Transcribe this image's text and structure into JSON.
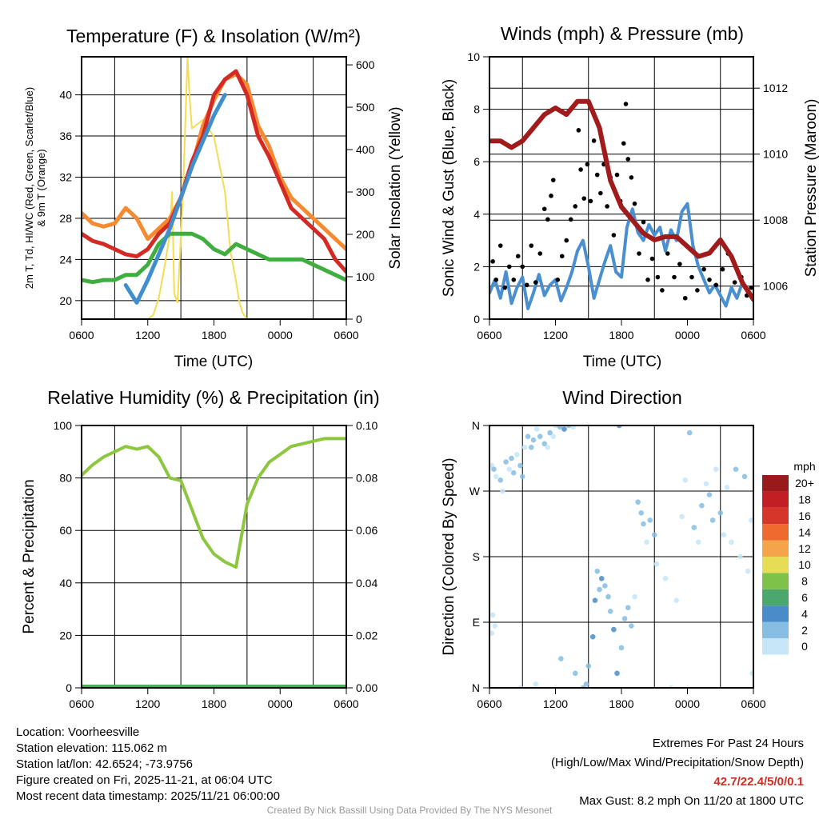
{
  "colors": {
    "temp": "#d42a24",
    "dew": "#3fae3f",
    "wc": "#3f8fcf",
    "t9m": "#f58a30",
    "solar": "#f5dc50",
    "pressure": "#a01c1c",
    "sonic": "#4a90d0",
    "gust": "#000000",
    "rh": "#8dc63f",
    "precip": "#4caf50"
  },
  "chart_data": [
    {
      "id": "temp",
      "type": "line",
      "title": "Temperature (F) & Insolation (W/m²)",
      "xlabel": "Time (UTC)",
      "ylabel": "2m T, Td, HI/WC (Red, Green, Scarlet/Blue)",
      "ylabel2": "& 9m T (Orange)",
      "ylabel_right": "Solar Insolation (Yellow)",
      "xticks": [
        "0600",
        "1200",
        "1800",
        "0000",
        "0600"
      ],
      "ylim": [
        18.2,
        43.7
      ],
      "yticks": [
        20,
        24,
        28,
        32,
        36,
        40
      ],
      "yticklabels": [
        "20",
        "24",
        "28",
        "32",
        "36",
        "40"
      ],
      "ylim_right": [
        0,
        619
      ],
      "yticks_right": [
        0,
        100,
        200,
        300,
        400,
        500,
        600
      ],
      "x_hours": [
        0,
        1,
        2,
        3,
        4,
        5,
        6,
        7,
        8,
        9,
        10,
        11,
        12,
        13,
        14,
        15,
        16,
        17,
        18,
        19,
        20,
        21,
        22,
        23,
        24
      ],
      "series": [
        {
          "name": "9m T",
          "color_key": "t9m",
          "values": [
            28.5,
            27.5,
            27.2,
            27.5,
            29,
            28,
            26,
            27,
            28,
            30,
            33,
            37,
            39.5,
            41.5,
            42,
            41,
            37,
            35,
            32,
            30,
            29,
            28,
            27,
            26,
            25
          ]
        },
        {
          "name": "2m T",
          "color_key": "temp",
          "values": [
            26.5,
            25.8,
            25.5,
            25,
            24.5,
            24.3,
            25,
            26.5,
            27.5,
            30,
            33.5,
            36,
            40,
            41.5,
            42.3,
            40,
            36,
            34,
            31.5,
            29,
            28,
            27,
            26,
            24,
            22.8
          ]
        },
        {
          "name": "Td",
          "color_key": "dew",
          "values": [
            22,
            21.8,
            22,
            22,
            22.5,
            22.5,
            23.5,
            25.5,
            26.5,
            26.5,
            26.5,
            26,
            25,
            24.5,
            25.5,
            25,
            24.5,
            24,
            24,
            24,
            24,
            23.5,
            23,
            22.5,
            22
          ]
        },
        {
          "name": "HI/WC",
          "color_key": "wc",
          "values": [
            25.5,
            null,
            null,
            null,
            21.5,
            19.8,
            22,
            24.5,
            27,
            30,
            33,
            35.5,
            38,
            40,
            null,
            null,
            null,
            null,
            null,
            null,
            null,
            null,
            null,
            null,
            22.5
          ]
        }
      ],
      "solar": {
        "x": [
          0,
          6,
          6.5,
          7,
          7.5,
          8,
          8.2,
          8.4,
          8.7,
          9.2,
          9.6,
          9.8,
          10,
          10.5,
          11,
          12,
          13,
          13.5,
          14,
          14.3,
          14.6,
          15,
          24
        ],
        "values": [
          0,
          0,
          10,
          50,
          120,
          200,
          300,
          60,
          40,
          300,
          620,
          520,
          450,
          460,
          470,
          430,
          300,
          160,
          90,
          40,
          15,
          0,
          0
        ]
      }
    },
    {
      "id": "wind",
      "type": "line",
      "title": "Winds (mph) & Pressure (mb)",
      "xlabel": "Time (UTC)",
      "ylabel": "Sonic Wind & Gust (Blue, Black)",
      "ylabel_right": "Station Pressure (Maroon)",
      "xticks": [
        "0600",
        "1200",
        "1800",
        "0000",
        "0600"
      ],
      "ylim": [
        0,
        10
      ],
      "yticks": [
        0,
        2,
        4,
        6,
        8,
        10
      ],
      "yticklabels": [
        "0",
        "2",
        "4",
        "6",
        "8",
        "10"
      ],
      "ylim_right": [
        1005,
        1012.95
      ],
      "yticks_right": [
        1006,
        1008,
        1010,
        1012
      ],
      "sonic": [
        1.0,
        1.5,
        0.8,
        1.8,
        0.6,
        1.2,
        1.6,
        0.4,
        1.0,
        1.7,
        0.9,
        1.3,
        1.5,
        0.7,
        1.2,
        1.8,
        2.6,
        3.0,
        2.0,
        0.8,
        1.5,
        2.2,
        2.8,
        1.8,
        1.6,
        3.5,
        4.2,
        3.3,
        3.0,
        3.6,
        3.2,
        3.5,
        2.6,
        3.4,
        3.0,
        4.1,
        4.4,
        2.8,
        2.0,
        1.5,
        1.0,
        1.3,
        0.9,
        0.5,
        1.2,
        0.8,
        1.4,
        1.0,
        0.7
      ],
      "gusts": [
        [
          0.3,
          2.2
        ],
        [
          0.6,
          1.5
        ],
        [
          1,
          2.8
        ],
        [
          1.4,
          1.2
        ],
        [
          1.8,
          2
        ],
        [
          2.2,
          1.5
        ],
        [
          2.6,
          2.4
        ],
        [
          3,
          2
        ],
        [
          3.4,
          1.3
        ],
        [
          3.8,
          2.8
        ],
        [
          4.2,
          1.4
        ],
        [
          4.6,
          2.5
        ],
        [
          5,
          4.2
        ],
        [
          5.3,
          3.8
        ],
        [
          5.6,
          4.7
        ],
        [
          5.8,
          5.3
        ],
        [
          6.2,
          1.5
        ],
        [
          6.6,
          2.4
        ],
        [
          7,
          3
        ],
        [
          7.4,
          3.8
        ],
        [
          7.8,
          4.3
        ],
        [
          8.1,
          7.2
        ],
        [
          8.3,
          5.7
        ],
        [
          8.6,
          4.6
        ],
        [
          8.9,
          5.9
        ],
        [
          9.2,
          4.5
        ],
        [
          9.5,
          6.8
        ],
        [
          9.8,
          5.5
        ],
        [
          10.1,
          4.8
        ],
        [
          10.4,
          5.9
        ],
        [
          10.7,
          4.3
        ],
        [
          11,
          5.4
        ],
        [
          11.3,
          3.2
        ],
        [
          11.6,
          5.5
        ],
        [
          11.9,
          4.5
        ],
        [
          12.2,
          6.7
        ],
        [
          12.4,
          8.2
        ],
        [
          12.6,
          6.1
        ],
        [
          12.9,
          5.4
        ],
        [
          13.2,
          4.4
        ],
        [
          13.6,
          2.5
        ],
        [
          14,
          3.7
        ],
        [
          14.4,
          1.5
        ],
        [
          14.8,
          2.3
        ],
        [
          15.3,
          1.6
        ],
        [
          15.7,
          1.1
        ],
        [
          16.2,
          2.5
        ],
        [
          16.8,
          1.6
        ],
        [
          17.3,
          2.1
        ],
        [
          17.8,
          0.8
        ],
        [
          18.4,
          1.6
        ],
        [
          18.9,
          1.1
        ],
        [
          19.5,
          1.9
        ],
        [
          20,
          1.5
        ],
        [
          20.6,
          1.3
        ],
        [
          21.2,
          1.9
        ],
        [
          21.7,
          2.5
        ],
        [
          22.3,
          1.4
        ],
        [
          22.9,
          1.6
        ],
        [
          23.4,
          0.9
        ],
        [
          23.8,
          1.2
        ]
      ],
      "pressure": [
        1010.4,
        1010.4,
        1010.2,
        1010.4,
        1010.8,
        1011.2,
        1011.4,
        1011.2,
        1011.6,
        1011.6,
        1010.8,
        1009.2,
        1008.4,
        1008.0,
        1007.6,
        1007.4,
        1007.5,
        1007.5,
        1007.2,
        1006.9,
        1007.0,
        1007.4,
        1006.9,
        1006.1,
        1005.6
      ]
    },
    {
      "id": "rh",
      "type": "line",
      "title": "Relative Humidity (%) & Precipitation (in)",
      "ylabel": "Percent & Precipitation",
      "xticks": [
        "0600",
        "1200",
        "1800",
        "0000",
        "0600"
      ],
      "ylim": [
        0,
        100
      ],
      "yticks": [
        0,
        20,
        40,
        60,
        80,
        100
      ],
      "yticklabels": [
        "0",
        "20",
        "40",
        "60",
        "80",
        "100"
      ],
      "ylim_right": [
        0,
        0.1
      ],
      "yticks_right": [
        0,
        0.02,
        0.04,
        0.06,
        0.08,
        0.1
      ],
      "yticklabels_right": [
        "0.00",
        "0.02",
        "0.04",
        "0.06",
        "0.08",
        "0.10"
      ],
      "rh": [
        81,
        85,
        88,
        90,
        92,
        91,
        92,
        88,
        80,
        79,
        68,
        57,
        51,
        48,
        46,
        70,
        80,
        86,
        89,
        92,
        93,
        94,
        95,
        95,
        95
      ],
      "precip": [
        0,
        0
      ]
    },
    {
      "id": "dir",
      "type": "scatter",
      "title": "Wind Direction",
      "ylabel": "Direction (Colored By Speed)",
      "xticks": [
        "0600",
        "1200",
        "1800",
        "0000",
        "0600"
      ],
      "ylim": [
        0,
        360
      ],
      "yticks": [
        0,
        90,
        180,
        270,
        360
      ],
      "yticklabels": [
        "N",
        "E",
        "S",
        "W",
        "N"
      ],
      "colorbar": {
        "title": "mph",
        "labels": [
          "0",
          "2",
          "4",
          "6",
          "8",
          "10",
          "12",
          "14",
          "16",
          "18",
          "20+"
        ],
        "colors": [
          "#c6e6f7",
          "#85bde3",
          "#4a8cc9",
          "#4aa86c",
          "#7fc24a",
          "#e6dc55",
          "#f5a44a",
          "#ee6a2e",
          "#d6352a",
          "#c11f24",
          "#9a1a1c"
        ]
      },
      "points": [
        [
          0.2,
          305,
          1
        ],
        [
          0.4,
          300,
          2
        ],
        [
          0.6,
          290,
          0.5
        ],
        [
          1.0,
          285,
          2
        ],
        [
          0.3,
          100,
          1
        ],
        [
          0.5,
          85,
          0.5
        ],
        [
          0.2,
          75,
          0
        ],
        [
          1.2,
          270,
          1
        ],
        [
          1.5,
          310,
          2
        ],
        [
          1.8,
          300,
          1
        ],
        [
          2.0,
          315,
          3
        ],
        [
          2.2,
          295,
          2
        ],
        [
          2.5,
          320,
          1
        ],
        [
          2.8,
          305,
          3
        ],
        [
          3,
          290,
          2
        ],
        [
          3.2,
          330,
          1
        ],
        [
          3.5,
          345,
          3
        ],
        [
          3.8,
          330,
          2
        ],
        [
          4,
          340,
          3
        ],
        [
          4.3,
          355,
          1
        ],
        [
          4.6,
          345,
          2
        ],
        [
          5,
          335,
          3
        ],
        [
          5.3,
          330,
          1
        ],
        [
          5.5,
          350,
          2
        ],
        [
          5.8,
          345,
          1
        ],
        [
          6,
          360,
          0
        ],
        [
          6.4,
          358,
          3
        ],
        [
          6.8,
          355,
          4
        ],
        [
          7.2,
          360,
          3
        ],
        [
          7.6,
          358,
          1
        ],
        [
          4.2,
          5,
          1
        ],
        [
          2.8,
          0,
          0
        ],
        [
          6.5,
          40,
          2
        ],
        [
          7.8,
          20,
          2
        ],
        [
          8.5,
          0,
          3
        ],
        [
          8.8,
          5,
          2
        ],
        [
          9,
          30,
          3
        ],
        [
          9.4,
          70,
          4
        ],
        [
          9.6,
          120,
          4
        ],
        [
          9.8,
          160,
          3
        ],
        [
          10,
          135,
          2
        ],
        [
          10.2,
          150,
          4
        ],
        [
          10.5,
          140,
          3
        ],
        [
          10.8,
          125,
          3
        ],
        [
          11,
          105,
          3
        ],
        [
          11.3,
          80,
          4
        ],
        [
          11.6,
          20,
          4
        ],
        [
          11.8,
          360,
          5
        ],
        [
          12,
          55,
          3
        ],
        [
          12.3,
          95,
          2
        ],
        [
          12.6,
          110,
          3
        ],
        [
          12.9,
          85,
          2
        ],
        [
          13.2,
          125,
          1
        ],
        [
          13.5,
          255,
          2
        ],
        [
          13.8,
          240,
          3
        ],
        [
          14,
          225,
          2
        ],
        [
          14.3,
          200,
          1
        ],
        [
          14.6,
          230,
          3
        ],
        [
          15,
          210,
          2
        ],
        [
          15.2,
          170,
          1
        ],
        [
          16,
          150,
          1
        ],
        [
          16.5,
          0,
          0
        ],
        [
          17,
          120,
          1
        ],
        [
          17.5,
          235,
          1
        ],
        [
          17.8,
          285,
          1
        ],
        [
          18.2,
          350,
          3
        ],
        [
          18.6,
          220,
          2
        ],
        [
          19,
          200,
          1
        ],
        [
          19.3,
          250,
          2
        ],
        [
          19.7,
          280,
          1
        ],
        [
          20,
          265,
          2
        ],
        [
          20.3,
          230,
          3
        ],
        [
          20.6,
          300,
          1
        ],
        [
          21,
          240,
          2
        ],
        [
          21.3,
          210,
          1
        ],
        [
          21.6,
          275,
          1
        ],
        [
          22,
          200,
          1
        ],
        [
          22.4,
          300,
          2
        ],
        [
          22.8,
          180,
          1
        ],
        [
          23.2,
          290,
          2
        ],
        [
          23.5,
          160,
          1
        ],
        [
          23.8,
          230,
          0
        ],
        [
          23.9,
          20,
          0
        ]
      ]
    }
  ],
  "info": {
    "location": "Location: Voorheesville",
    "elevation": "Station elevation: 115.062 m",
    "latlon": "Station lat/lon: 42.6524; -73.9756",
    "created": "Figure created on Fri, 2025-11-21, at 06:04 UTC",
    "recent": "Most recent data timestamp: 2025/11/21 06:00:00"
  },
  "extremes": {
    "title": "Extremes For Past 24 Hours",
    "subtitle": "(High/Low/Max Wind/Precipitation/Snow Depth)",
    "values": "42.7/22.4/5/0/0.1",
    "gust": "Max Gust: 8.2 mph On 11/20 at 1800 UTC"
  },
  "footer": "Created By Nick Bassill Using Data Provided By The NYS Mesonet"
}
